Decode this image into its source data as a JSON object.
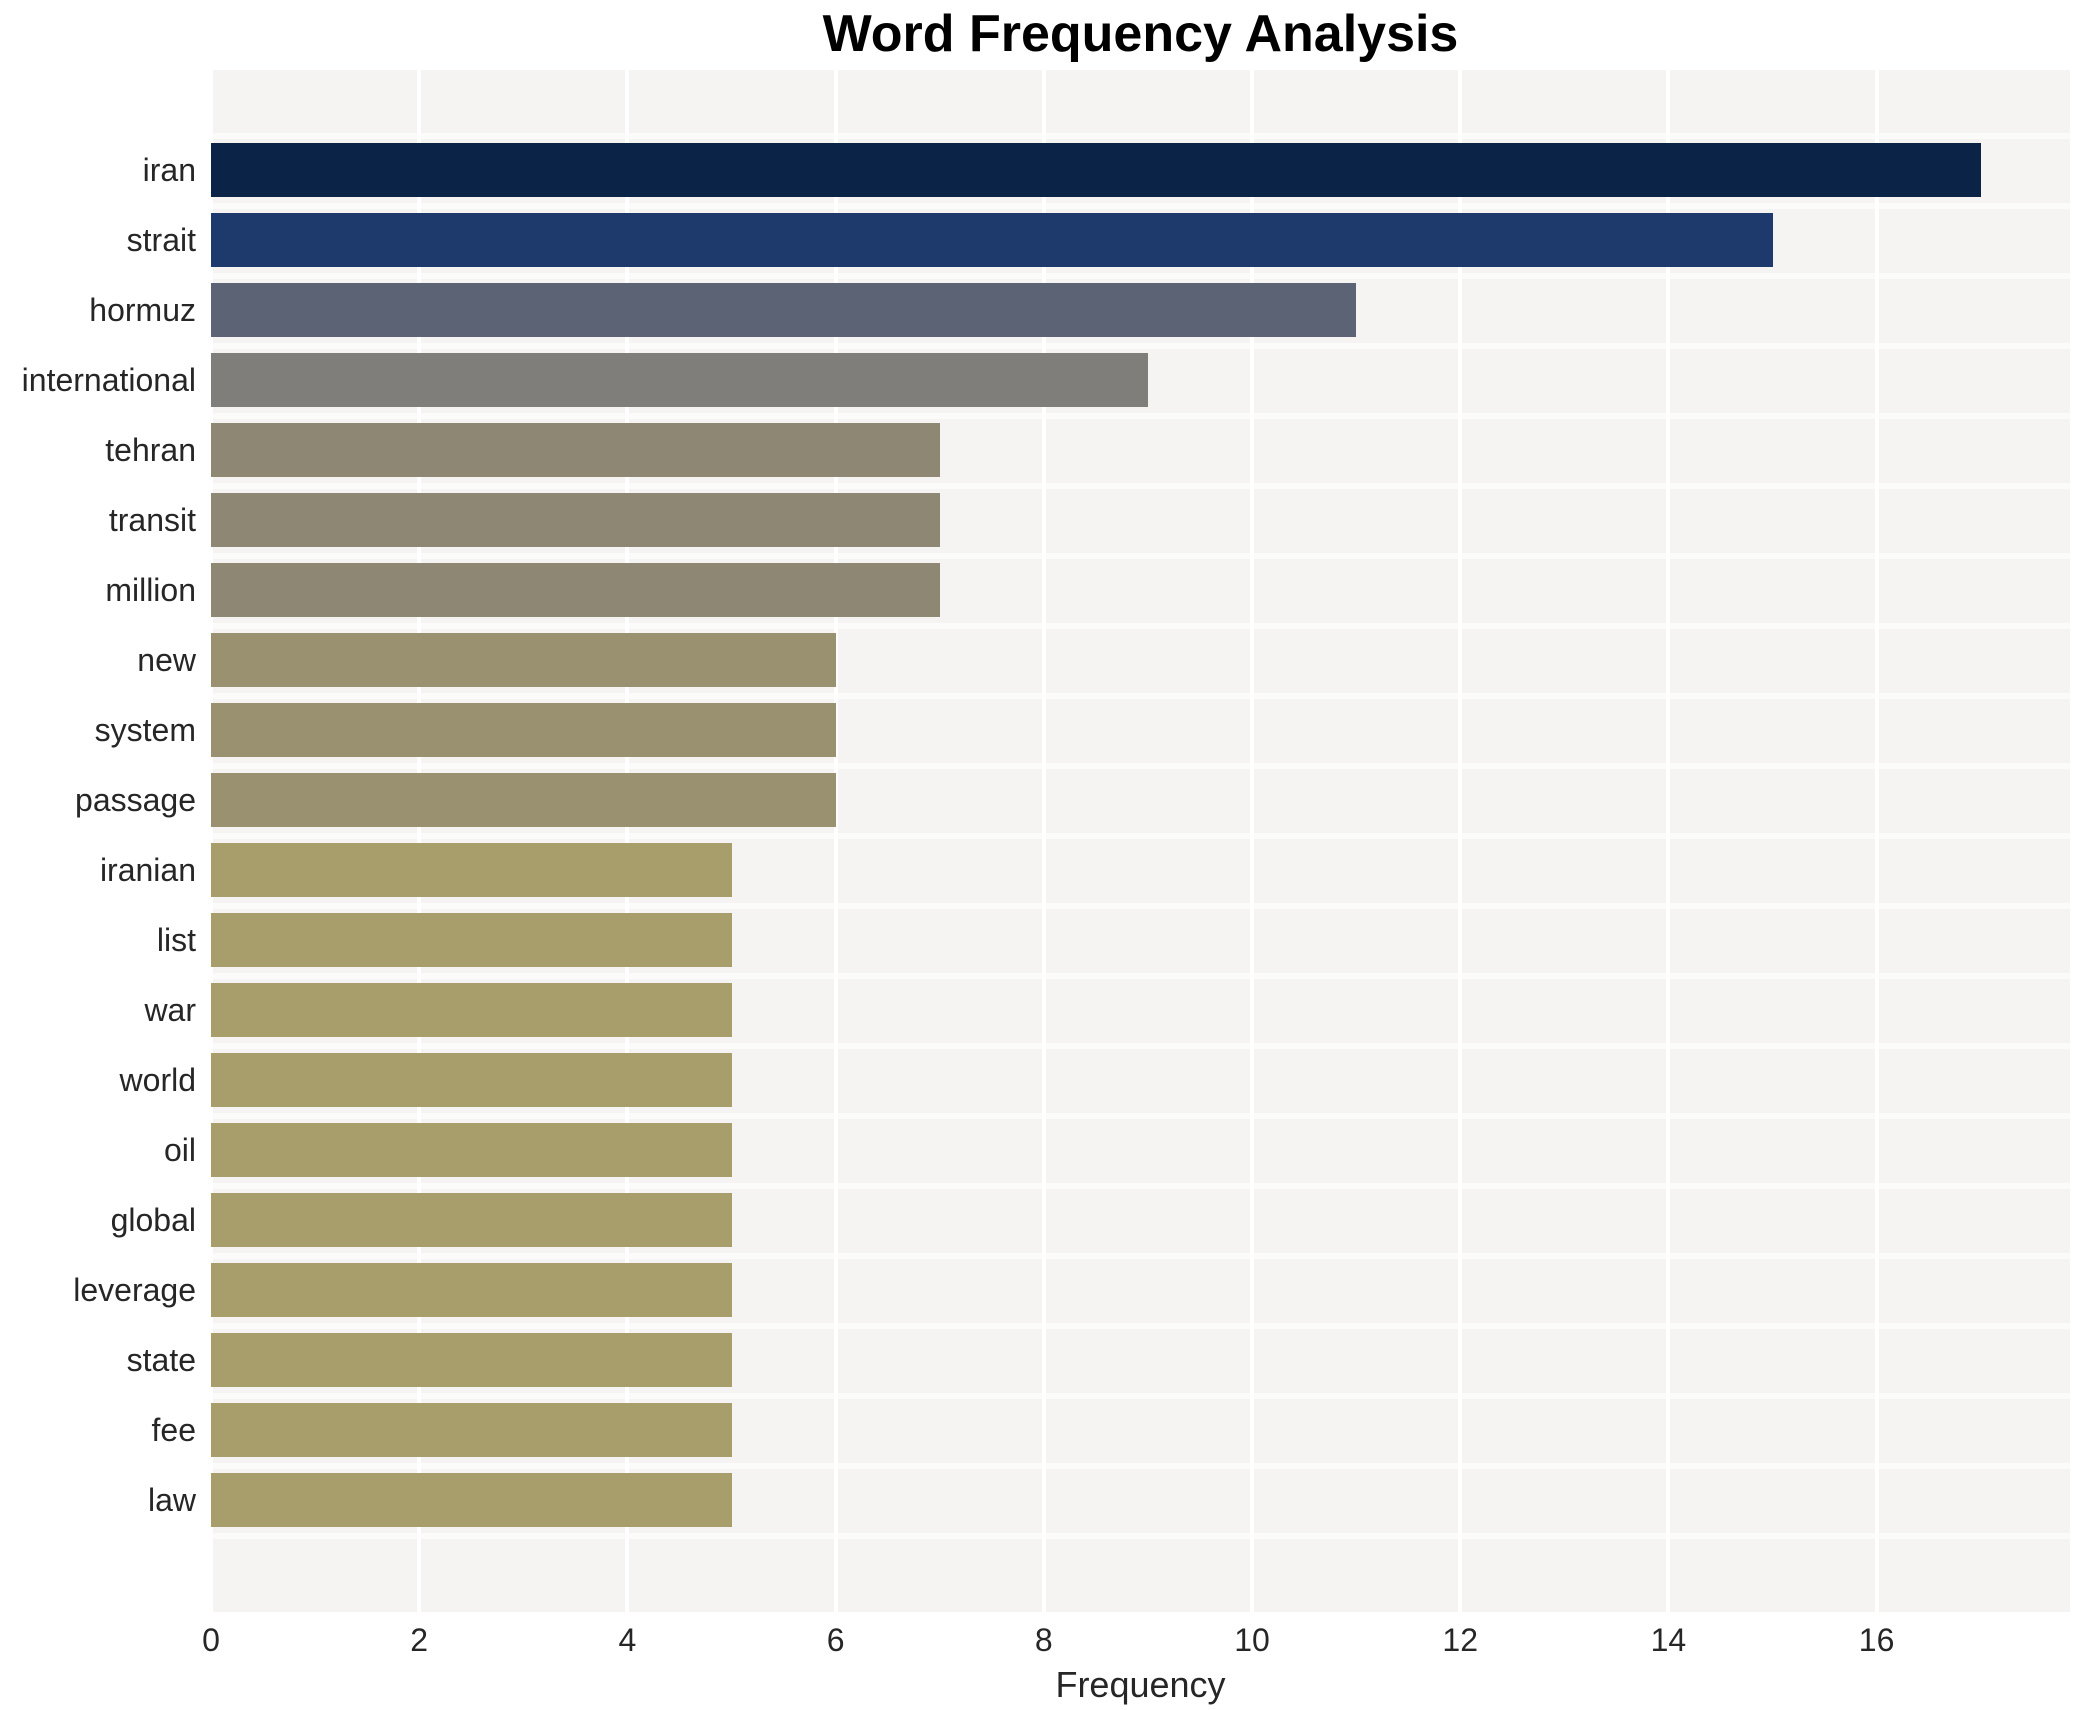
{
  "title": "Word Frequency Analysis",
  "xlabel": "Frequency",
  "colors": {
    "figure_background": "#ffffff",
    "panel_background": "#f5f4f2",
    "gridline": "#ffffff",
    "text": "#262626",
    "title_text": "#000000"
  },
  "chart_data": {
    "type": "bar",
    "orientation": "horizontal",
    "title": "Word Frequency Analysis",
    "xlabel": "Frequency",
    "ylabel": "",
    "categories": [
      "iran",
      "strait",
      "hormuz",
      "international",
      "tehran",
      "transit",
      "million",
      "new",
      "system",
      "passage",
      "iranian",
      "list",
      "war",
      "world",
      "oil",
      "global",
      "leverage",
      "state",
      "fee",
      "law"
    ],
    "values": [
      17,
      15,
      11,
      9,
      7,
      7,
      7,
      6,
      6,
      6,
      5,
      5,
      5,
      5,
      5,
      5,
      5,
      5,
      5,
      5
    ],
    "bar_colors": [
      "#0a2347",
      "#1e3a6c",
      "#5c6374",
      "#7f7e7b",
      "#8e8773",
      "#8e8773",
      "#8e8773",
      "#9a9170",
      "#9a9170",
      "#9a9170",
      "#a89e6c",
      "#a89e6c",
      "#a89e6c",
      "#a89e6c",
      "#a89e6c",
      "#a89e6c",
      "#a89e6c",
      "#a89e6c",
      "#a89e6c",
      "#a89e6c"
    ],
    "xticks": [
      0,
      2,
      4,
      6,
      8,
      10,
      12,
      14,
      16
    ],
    "xlim": [
      0,
      17.86
    ],
    "grid": "vertical white gridlines on light gray panel",
    "legend": "none",
    "value_labels": "none"
  }
}
